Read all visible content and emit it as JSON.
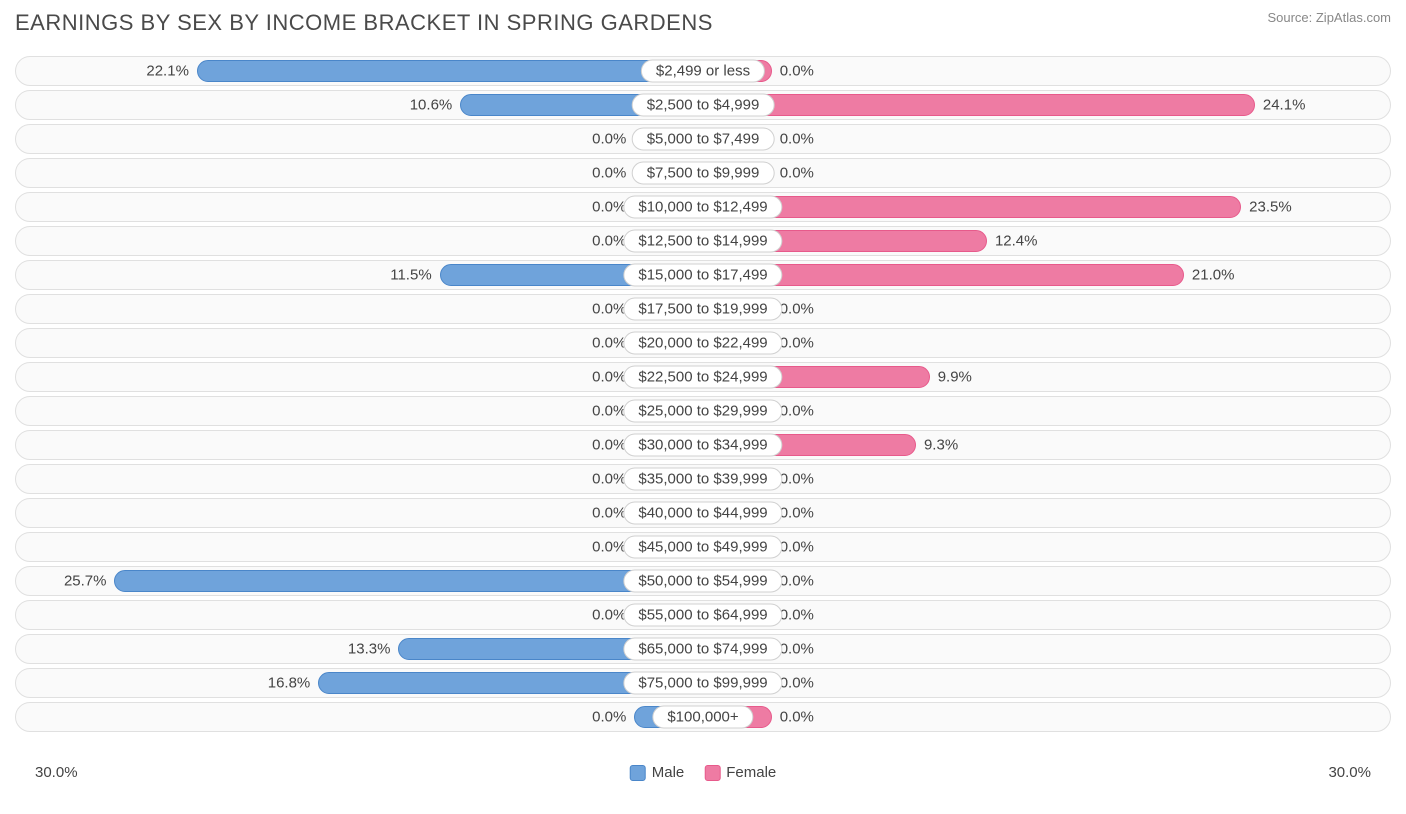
{
  "title": "EARNINGS BY SEX BY INCOME BRACKET IN SPRING GARDENS",
  "source": "Source: ZipAtlas.com",
  "chart": {
    "type": "diverging-bar",
    "max_percent": 30.0,
    "min_bar_percent": 3.0,
    "axis_label_left": "30.0%",
    "axis_label_right": "30.0%",
    "male_color": "#6fa3db",
    "male_border": "#4a86c9",
    "female_color": "#ee7ba3",
    "female_border": "#e75a8b",
    "row_bg": "#fafafa",
    "row_border": "#e0e0e0",
    "label_bg": "#ffffff",
    "label_border": "#d0d0d0",
    "text_color": "#444444",
    "title_color": "#4a4a4a",
    "title_fontsize": 22,
    "value_fontsize": 15,
    "legend": [
      {
        "label": "Male",
        "color": "#6fa3db",
        "border": "#4a86c9"
      },
      {
        "label": "Female",
        "color": "#ee7ba3",
        "border": "#e75a8b"
      }
    ],
    "rows": [
      {
        "category": "$2,499 or less",
        "male": 22.1,
        "female": 0.0
      },
      {
        "category": "$2,500 to $4,999",
        "male": 10.6,
        "female": 24.1
      },
      {
        "category": "$5,000 to $7,499",
        "male": 0.0,
        "female": 0.0
      },
      {
        "category": "$7,500 to $9,999",
        "male": 0.0,
        "female": 0.0
      },
      {
        "category": "$10,000 to $12,499",
        "male": 0.0,
        "female": 23.5
      },
      {
        "category": "$12,500 to $14,999",
        "male": 0.0,
        "female": 12.4
      },
      {
        "category": "$15,000 to $17,499",
        "male": 11.5,
        "female": 21.0
      },
      {
        "category": "$17,500 to $19,999",
        "male": 0.0,
        "female": 0.0
      },
      {
        "category": "$20,000 to $22,499",
        "male": 0.0,
        "female": 0.0
      },
      {
        "category": "$22,500 to $24,999",
        "male": 0.0,
        "female": 9.9
      },
      {
        "category": "$25,000 to $29,999",
        "male": 0.0,
        "female": 0.0
      },
      {
        "category": "$30,000 to $34,999",
        "male": 0.0,
        "female": 9.3
      },
      {
        "category": "$35,000 to $39,999",
        "male": 0.0,
        "female": 0.0
      },
      {
        "category": "$40,000 to $44,999",
        "male": 0.0,
        "female": 0.0
      },
      {
        "category": "$45,000 to $49,999",
        "male": 0.0,
        "female": 0.0
      },
      {
        "category": "$50,000 to $54,999",
        "male": 25.7,
        "female": 0.0
      },
      {
        "category": "$55,000 to $64,999",
        "male": 0.0,
        "female": 0.0
      },
      {
        "category": "$65,000 to $74,999",
        "male": 13.3,
        "female": 0.0
      },
      {
        "category": "$75,000 to $99,999",
        "male": 16.8,
        "female": 0.0
      },
      {
        "category": "$100,000+",
        "male": 0.0,
        "female": 0.0
      }
    ]
  }
}
